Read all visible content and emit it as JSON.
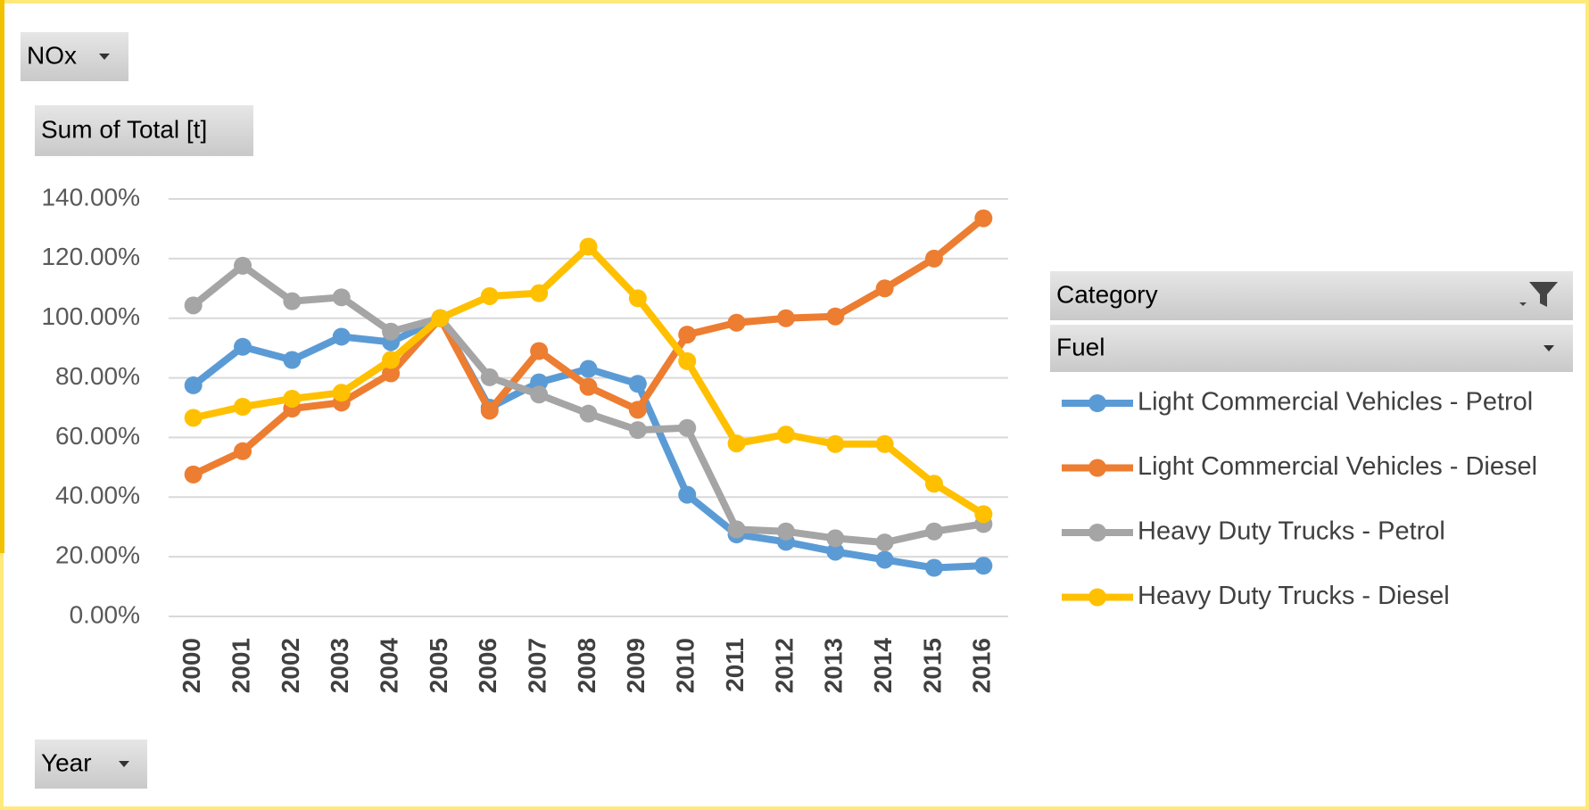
{
  "chart_data": {
    "type": "line",
    "filter_field": "NOx",
    "value_field": "Sum of Total [t]",
    "legend_fields": [
      "Category",
      "Fuel"
    ],
    "axis_field": "Year",
    "categories": [
      "2000",
      "2001",
      "2002",
      "2003",
      "2004",
      "2005",
      "2006",
      "2007",
      "2008",
      "2009",
      "2010",
      "2011",
      "2012",
      "2013",
      "2014",
      "2015",
      "2016"
    ],
    "series": [
      {
        "name": "Light Commercial Vehicles - Petrol",
        "color": "#5b9bd5",
        "values": [
          77.5,
          90.4,
          86,
          93.8,
          92,
          100,
          70,
          78.5,
          83,
          78,
          40.8,
          27.5,
          25,
          21.7,
          19,
          16.3,
          17
        ]
      },
      {
        "name": "Light Commercial Vehicles - Diesel",
        "color": "#ed7d31",
        "values": [
          47.6,
          55.4,
          69.7,
          71.7,
          81.5,
          100,
          69,
          89,
          77,
          69.3,
          94.5,
          98.5,
          100,
          100.6,
          110,
          120,
          133.5
        ]
      },
      {
        "name": "Heavy Duty Trucks - Petrol",
        "color": "#a5a5a5",
        "values": [
          104.3,
          117.6,
          105.7,
          107,
          95.5,
          100,
          80.2,
          74.4,
          68,
          62.5,
          63.2,
          29.2,
          28.5,
          26.2,
          24.8,
          28.5,
          31
        ]
      },
      {
        "name": "Heavy Duty Trucks - Diesel",
        "color": "#ffc000",
        "values": [
          66.6,
          70.3,
          73,
          75,
          86,
          100,
          107.4,
          108.4,
          124,
          106.7,
          85.6,
          58,
          61,
          57.8,
          57.8,
          44.5,
          34.3
        ]
      }
    ],
    "ylim": [
      0,
      140
    ],
    "yticks": [
      {
        "value": 0,
        "label": "0.00%"
      },
      {
        "value": 20,
        "label": "20.00%"
      },
      {
        "value": 40,
        "label": "40.00%"
      },
      {
        "value": 60,
        "label": "60.00%"
      },
      {
        "value": 80,
        "label": "80.00%"
      },
      {
        "value": 100,
        "label": "100.00%"
      },
      {
        "value": 120,
        "label": "120.00%"
      },
      {
        "value": 140,
        "label": "140.00%"
      }
    ],
    "grid": true,
    "legend": "right"
  }
}
